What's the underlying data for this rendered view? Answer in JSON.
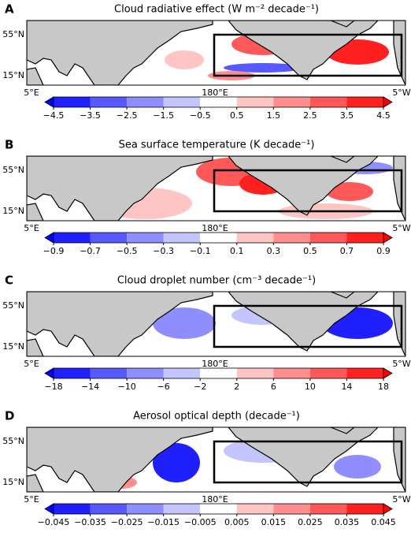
{
  "colormap": [
    "#0000ff",
    "#2020ff",
    "#5858ff",
    "#8e8eff",
    "#c4c4ff",
    "#ffffff",
    "#ffc4c4",
    "#ff8e8e",
    "#ff5858",
    "#ff2020",
    "#ff0000"
  ],
  "panels": [
    {
      "letter": "A",
      "title": "Cloud radiative effect (W m⁻² decade⁻¹)",
      "lat_labels": [
        "55°N",
        "15°N"
      ],
      "lon_labels": [
        "5°E",
        "180°E",
        "5°W"
      ],
      "clim": [
        -4.5,
        4.5
      ],
      "ticks": [
        {
          "value": -4.5,
          "label": "−4.5"
        },
        {
          "value": -3.5,
          "label": "−3.5"
        },
        {
          "value": -2.5,
          "label": "−2.5"
        },
        {
          "value": -1.5,
          "label": "−1.5"
        },
        {
          "value": -0.5,
          "label": "−0.5"
        },
        0.5,
        1.5,
        2.5,
        3.5,
        4.5
      ]
    },
    {
      "letter": "B",
      "title": "Sea surface temperature (K decade⁻¹)",
      "lat_labels": [
        "55°N",
        "15°N"
      ],
      "lon_labels": [
        "5°E",
        "180°E",
        "5°W"
      ],
      "clim": [
        -0.9,
        0.9
      ],
      "ticks": [
        {
          "value": -0.9,
          "label": "−0.9"
        },
        {
          "value": -0.7,
          "label": "−0.7"
        },
        {
          "value": -0.5,
          "label": "−0.5"
        },
        {
          "value": -0.3,
          "label": "−0.3"
        },
        {
          "value": -0.1,
          "label": "−0.1"
        },
        0.1,
        0.3,
        0.5,
        0.7,
        0.9
      ]
    },
    {
      "letter": "C",
      "title": "Cloud droplet number (cm⁻³ decade⁻¹)",
      "lat_labels": [
        "55°N",
        "15°N"
      ],
      "lon_labels": [
        "5°E",
        "180°E",
        "5°W"
      ],
      "clim": [
        -18,
        18
      ],
      "ticks": [
        {
          "value": -18,
          "label": "−18"
        },
        {
          "value": -14,
          "label": "−14"
        },
        {
          "value": -10,
          "label": "−10"
        },
        {
          "value": -6,
          "label": "−6"
        },
        {
          "value": -2,
          "label": "−2"
        },
        2,
        6,
        10,
        14,
        18
      ]
    },
    {
      "letter": "D",
      "title": "Aerosol optical depth (decade⁻¹)",
      "lat_labels": [
        "55°N",
        "15°N"
      ],
      "lon_labels": [
        "5°E",
        "180°E",
        "5°W"
      ],
      "clim": [
        -0.045,
        0.045
      ],
      "ticks": [
        {
          "value": -0.045,
          "label": "−0.045"
        },
        {
          "value": -0.035,
          "label": "−0.035"
        },
        {
          "value": -0.025,
          "label": "−0.025"
        },
        {
          "value": -0.015,
          "label": "−0.015"
        },
        {
          "value": -0.005,
          "label": "−0.005"
        },
        0.005,
        0.015,
        0.025,
        0.035,
        0.045
      ]
    }
  ]
}
